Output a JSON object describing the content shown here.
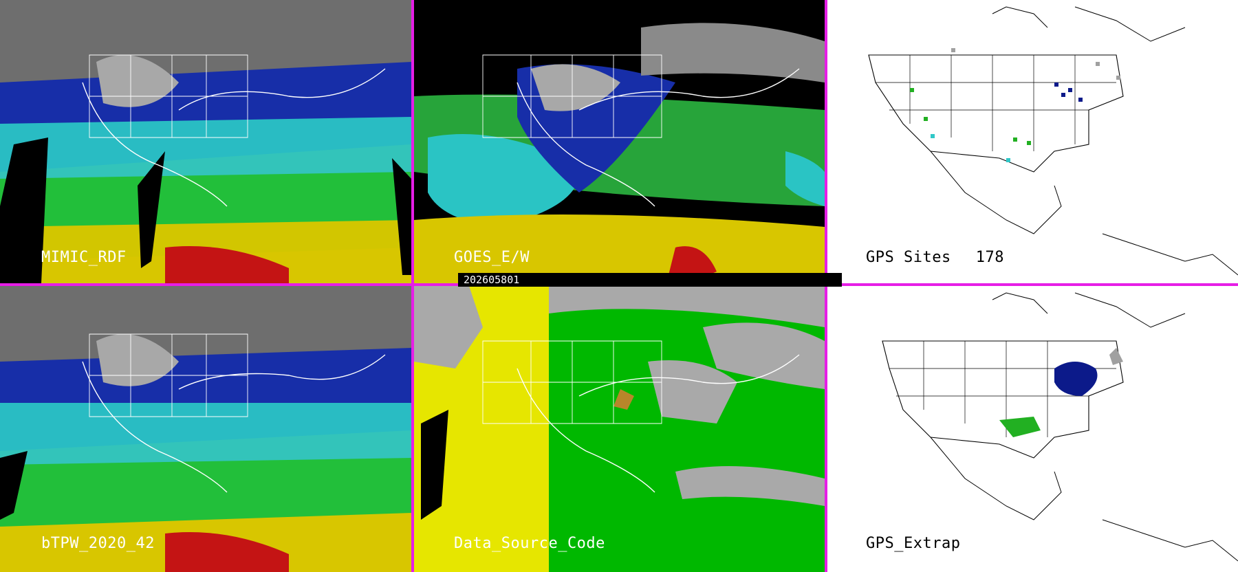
{
  "panels": [
    {
      "id": "mimic",
      "label": "MIMIC_RDF"
    },
    {
      "id": "goes",
      "label": "GOES_E/W"
    },
    {
      "id": "gps",
      "label": "GPS Sites",
      "count": "178"
    },
    {
      "id": "btpw",
      "label": "bTPW_2020_42"
    },
    {
      "id": "dsc",
      "label": "Data_Source_Code"
    },
    {
      "id": "extrap",
      "label": "GPS_Extrap"
    }
  ],
  "timestamp": "202605801",
  "colors": {
    "divider": "#e61ee6",
    "scale": [
      "#7a7a7a",
      "#1c1ca8",
      "#3a5ee0",
      "#27c8c8",
      "#20c040",
      "#34e034",
      "#d0c800",
      "#e6e600",
      "#c81414"
    ],
    "dsc_yellow": "#e6e600",
    "dsc_green": "#00b800",
    "dsc_gray": "#a9a9a9",
    "gps_navy": "#0c1a8a",
    "gps_green": "#22b022",
    "gps_cyan": "#30c8c8",
    "gps_gray": "#a0a0a0"
  }
}
